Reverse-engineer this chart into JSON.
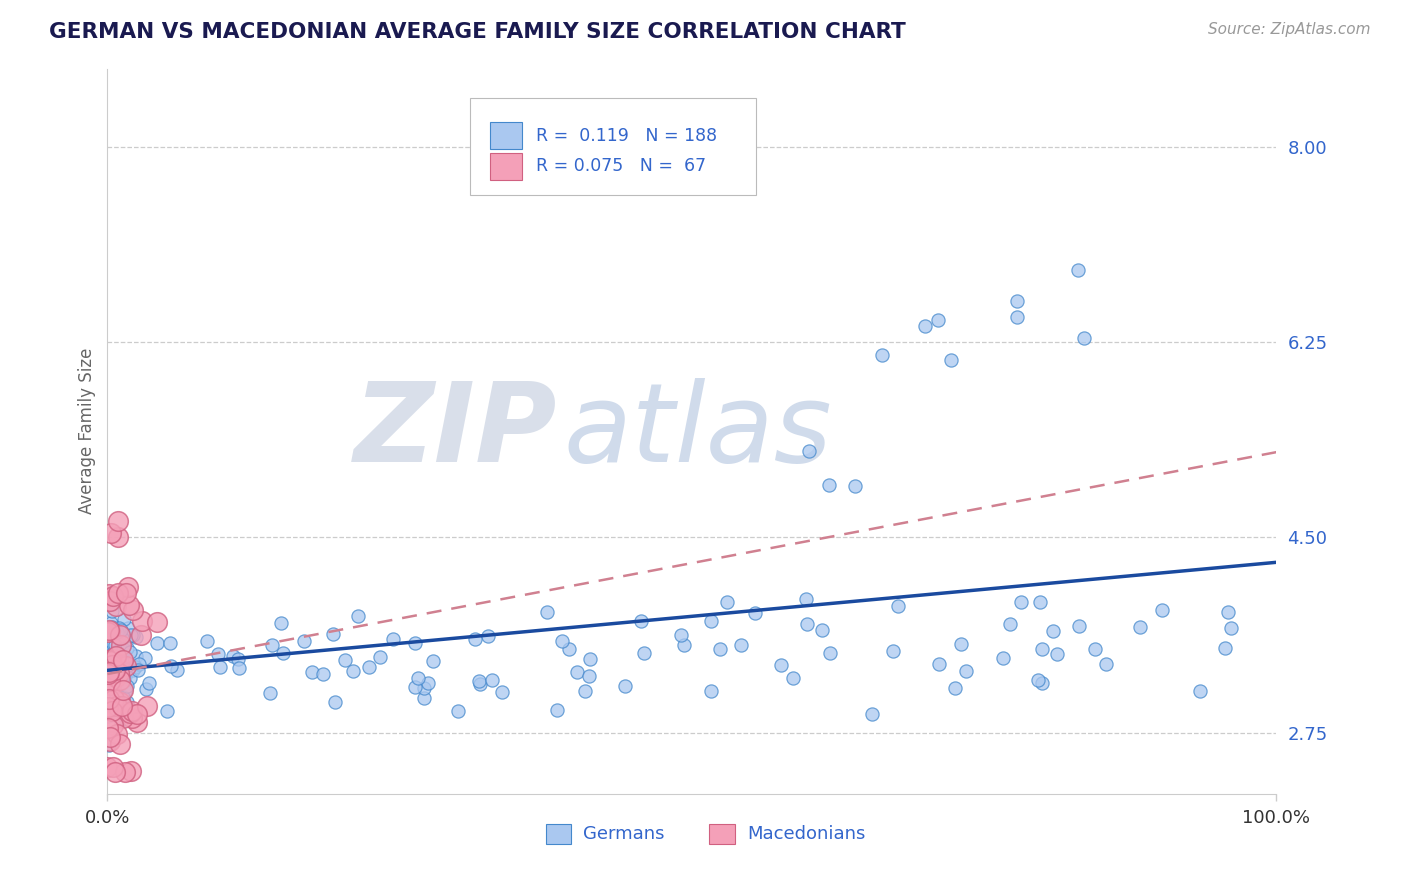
{
  "title": "GERMAN VS MACEDONIAN AVERAGE FAMILY SIZE CORRELATION CHART",
  "source_text": "Source: ZipAtlas.com",
  "ylabel": "Average Family Size",
  "watermark_zip": "ZIP",
  "watermark_atlas": "atlas",
  "xlim": [
    0,
    1
  ],
  "ylim": [
    2.2,
    8.7
  ],
  "yticks": [
    2.75,
    4.5,
    6.25,
    8.0
  ],
  "ytick_labels": [
    "2.75",
    "4.50",
    "6.25",
    "8.00"
  ],
  "xticks": [
    0.0,
    1.0
  ],
  "xtick_labels": [
    "0.0%",
    "100.0%"
  ],
  "german_face_color": "#aac8f0",
  "german_edge_color": "#4488cc",
  "macedonian_face_color": "#f4a0b8",
  "macedonian_edge_color": "#d06080",
  "german_line_color": "#1a4a9f",
  "macedonian_line_color": "#d08090",
  "background_color": "#ffffff",
  "grid_color": "#cccccc",
  "ytick_color": "#3366cc",
  "xtick_color": "#333333",
  "title_color": "#1a1a50",
  "ylabel_color": "#666666",
  "source_color": "#999999",
  "german_R": 0.119,
  "german_N": 188,
  "macedonian_R": 0.075,
  "macedonian_N": 67,
  "seed": 7
}
